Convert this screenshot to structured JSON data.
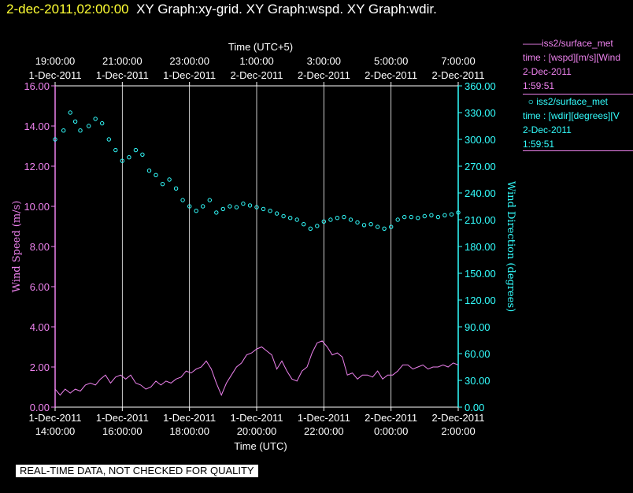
{
  "header": {
    "timestamp": "2-dec-2011,02:00:00",
    "graphs": "XY Graph:xy-grid.  XY Graph:wspd.  XY Graph:wdir."
  },
  "legend": [
    {
      "series": "iss2/surface_met",
      "desc": "time : [wspd][m/s][Wind",
      "date": "2-Dec-2011",
      "time": "1:59:51",
      "color": "#ee82ee",
      "marker": "line"
    },
    {
      "series": "iss2/surface_met",
      "desc": "time : [wdir][degrees][V",
      "date": "2-Dec-2011",
      "time": "1:59:51",
      "color": "#33ffff",
      "marker": "circle"
    }
  ],
  "qc_note": "REAL-TIME DATA, NOT CHECKED FOR QUALITY",
  "chart_data": {
    "type": "scatter",
    "x_top_label": "Time (UTC+5)",
    "x_bottom_label": "Time (UTC)",
    "ylabel_left": "Wind Speed (m/s)",
    "ylabel_right": "Wind Direction (degrees)",
    "xlim_hours": [
      14,
      26
    ],
    "ylim_left": [
      0,
      16
    ],
    "ylim_right": [
      0,
      360
    ],
    "grid": "vertical",
    "bottom_ticks": [
      {
        "h": 14,
        "l1": "1-Dec-2011",
        "l2": "14:00:00"
      },
      {
        "h": 16,
        "l1": "1-Dec-2011",
        "l2": "16:00:00"
      },
      {
        "h": 18,
        "l1": "1-Dec-2011",
        "l2": "18:00:00"
      },
      {
        "h": 20,
        "l1": "1-Dec-2011",
        "l2": "20:00:00"
      },
      {
        "h": 22,
        "l1": "1-Dec-2011",
        "l2": "22:00:00"
      },
      {
        "h": 24,
        "l1": "2-Dec-2011",
        "l2": "0:00:00"
      },
      {
        "h": 26,
        "l1": "2-Dec-2011",
        "l2": "2:00:00"
      }
    ],
    "top_ticks": [
      {
        "h": 14,
        "l1": "19:00:00",
        "l2": "1-Dec-2011"
      },
      {
        "h": 16,
        "l1": "21:00:00",
        "l2": "1-Dec-2011"
      },
      {
        "h": 18,
        "l1": "23:00:00",
        "l2": "1-Dec-2011"
      },
      {
        "h": 20,
        "l1": "1:00:00",
        "l2": "2-Dec-2011"
      },
      {
        "h": 22,
        "l1": "3:00:00",
        "l2": "2-Dec-2011"
      },
      {
        "h": 24,
        "l1": "5:00:00",
        "l2": "2-Dec-2011"
      },
      {
        "h": 26,
        "l1": "7:00:00",
        "l2": "2-Dec-2011"
      }
    ],
    "left_ticks": [
      {
        "v": 0,
        "l": "0.00"
      },
      {
        "v": 2,
        "l": "2.00"
      },
      {
        "v": 4,
        "l": "4.00"
      },
      {
        "v": 6,
        "l": "6.00"
      },
      {
        "v": 8,
        "l": "8.00"
      },
      {
        "v": 10,
        "l": "10.00"
      },
      {
        "v": 12,
        "l": "12.00"
      },
      {
        "v": 14,
        "l": "14.00"
      },
      {
        "v": 16,
        "l": "16.00"
      }
    ],
    "right_ticks": [
      {
        "v": 0,
        "l": "0.00"
      },
      {
        "v": 30,
        "l": "30.00"
      },
      {
        "v": 60,
        "l": "60.00"
      },
      {
        "v": 90,
        "l": "90.00"
      },
      {
        "v": 120,
        "l": "120.00"
      },
      {
        "v": 150,
        "l": "150.00"
      },
      {
        "v": 180,
        "l": "180.00"
      },
      {
        "v": 210,
        "l": "210.00"
      },
      {
        "v": 240,
        "l": "240.00"
      },
      {
        "v": 270,
        "l": "270.00"
      },
      {
        "v": 300,
        "l": "300.00"
      },
      {
        "v": 330,
        "l": "330.00"
      },
      {
        "v": 360,
        "l": "360.00"
      }
    ],
    "series": [
      {
        "name": "iss2/surface_met time : [wspd][m/s]",
        "axis": "left",
        "color": "#ee82ee",
        "style": "line",
        "points": [
          [
            14.0,
            0.9
          ],
          [
            14.15,
            0.6
          ],
          [
            14.3,
            0.9
          ],
          [
            14.45,
            0.7
          ],
          [
            14.6,
            0.9
          ],
          [
            14.75,
            0.8
          ],
          [
            14.9,
            1.1
          ],
          [
            15.05,
            1.2
          ],
          [
            15.2,
            1.1
          ],
          [
            15.35,
            1.4
          ],
          [
            15.5,
            1.6
          ],
          [
            15.65,
            1.2
          ],
          [
            15.8,
            1.5
          ],
          [
            15.95,
            1.6
          ],
          [
            16.1,
            1.4
          ],
          [
            16.25,
            1.6
          ],
          [
            16.4,
            1.2
          ],
          [
            16.55,
            1.1
          ],
          [
            16.7,
            0.9
          ],
          [
            16.85,
            1.0
          ],
          [
            17.0,
            1.3
          ],
          [
            17.15,
            1.1
          ],
          [
            17.3,
            1.3
          ],
          [
            17.45,
            1.2
          ],
          [
            17.6,
            1.4
          ],
          [
            17.75,
            1.5
          ],
          [
            17.9,
            1.8
          ],
          [
            18.05,
            1.7
          ],
          [
            18.2,
            1.9
          ],
          [
            18.35,
            2.0
          ],
          [
            18.5,
            2.3
          ],
          [
            18.65,
            1.9
          ],
          [
            18.8,
            1.2
          ],
          [
            18.95,
            0.6
          ],
          [
            19.1,
            1.2
          ],
          [
            19.25,
            1.6
          ],
          [
            19.4,
            2.0
          ],
          [
            19.55,
            2.2
          ],
          [
            19.7,
            2.6
          ],
          [
            19.85,
            2.7
          ],
          [
            20.0,
            2.9
          ],
          [
            20.15,
            3.0
          ],
          [
            20.3,
            2.8
          ],
          [
            20.45,
            2.6
          ],
          [
            20.6,
            1.9
          ],
          [
            20.75,
            2.3
          ],
          [
            20.9,
            1.8
          ],
          [
            21.05,
            1.4
          ],
          [
            21.2,
            1.3
          ],
          [
            21.35,
            1.8
          ],
          [
            21.5,
            2.0
          ],
          [
            21.65,
            2.7
          ],
          [
            21.8,
            3.2
          ],
          [
            21.95,
            3.3
          ],
          [
            22.1,
            3.0
          ],
          [
            22.25,
            2.6
          ],
          [
            22.4,
            2.7
          ],
          [
            22.55,
            2.5
          ],
          [
            22.7,
            1.6
          ],
          [
            22.85,
            1.7
          ],
          [
            23.0,
            1.4
          ],
          [
            23.15,
            1.6
          ],
          [
            23.3,
            1.6
          ],
          [
            23.45,
            1.5
          ],
          [
            23.6,
            1.8
          ],
          [
            23.75,
            1.4
          ],
          [
            23.9,
            1.6
          ],
          [
            24.05,
            1.6
          ],
          [
            24.2,
            1.8
          ],
          [
            24.35,
            2.1
          ],
          [
            24.5,
            2.1
          ],
          [
            24.65,
            1.9
          ],
          [
            24.8,
            2.0
          ],
          [
            24.95,
            2.1
          ],
          [
            25.1,
            1.9
          ],
          [
            25.25,
            2.0
          ],
          [
            25.4,
            2.0
          ],
          [
            25.55,
            2.1
          ],
          [
            25.7,
            2.0
          ],
          [
            25.85,
            2.2
          ],
          [
            26.0,
            2.1
          ]
        ]
      },
      {
        "name": "iss2/surface_met time : [wdir][degrees]",
        "axis": "right",
        "color": "#33ffff",
        "style": "points",
        "points": [
          [
            14.0,
            300
          ],
          [
            14.25,
            310
          ],
          [
            14.45,
            330
          ],
          [
            14.6,
            320
          ],
          [
            14.75,
            310
          ],
          [
            15.0,
            315
          ],
          [
            15.2,
            323
          ],
          [
            15.4,
            318
          ],
          [
            15.6,
            300
          ],
          [
            15.8,
            288
          ],
          [
            16.0,
            276
          ],
          [
            16.2,
            280
          ],
          [
            16.4,
            288
          ],
          [
            16.6,
            283
          ],
          [
            16.8,
            265
          ],
          [
            17.0,
            260
          ],
          [
            17.2,
            250
          ],
          [
            17.4,
            255
          ],
          [
            17.6,
            245
          ],
          [
            17.8,
            232
          ],
          [
            18.0,
            225
          ],
          [
            18.2,
            220
          ],
          [
            18.4,
            225
          ],
          [
            18.6,
            232
          ],
          [
            18.8,
            218
          ],
          [
            19.0,
            222
          ],
          [
            19.2,
            225
          ],
          [
            19.4,
            224
          ],
          [
            19.6,
            228
          ],
          [
            19.8,
            226
          ],
          [
            20.0,
            224
          ],
          [
            20.2,
            222
          ],
          [
            20.4,
            220
          ],
          [
            20.6,
            217
          ],
          [
            20.8,
            214
          ],
          [
            21.0,
            212
          ],
          [
            21.2,
            210
          ],
          [
            21.4,
            205
          ],
          [
            21.6,
            200
          ],
          [
            21.8,
            203
          ],
          [
            22.0,
            208
          ],
          [
            22.2,
            210
          ],
          [
            22.4,
            212
          ],
          [
            22.6,
            213
          ],
          [
            22.8,
            210
          ],
          [
            23.0,
            207
          ],
          [
            23.2,
            204
          ],
          [
            23.4,
            205
          ],
          [
            23.6,
            202
          ],
          [
            23.8,
            200
          ],
          [
            24.0,
            202
          ],
          [
            24.2,
            210
          ],
          [
            24.4,
            213
          ],
          [
            24.6,
            213
          ],
          [
            24.8,
            212
          ],
          [
            25.0,
            214
          ],
          [
            25.2,
            215
          ],
          [
            25.4,
            213
          ],
          [
            25.6,
            215
          ],
          [
            25.8,
            216
          ],
          [
            26.0,
            218
          ]
        ]
      }
    ]
  }
}
